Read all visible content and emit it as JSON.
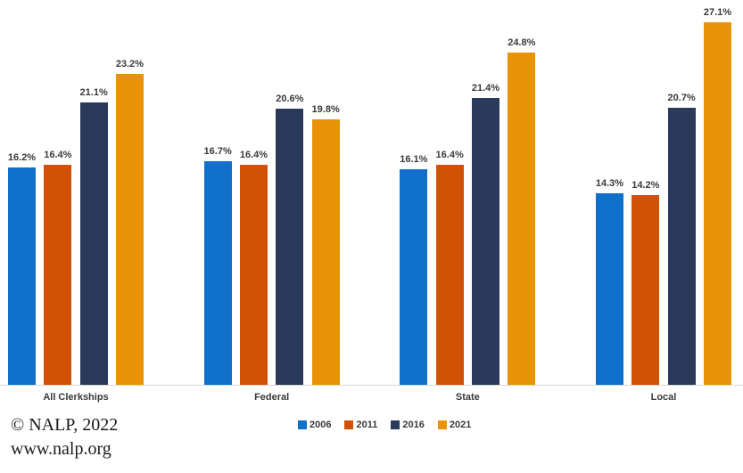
{
  "chart_data": {
    "type": "bar",
    "title": "",
    "categories": [
      "All Clerkships",
      "Federal",
      "State",
      "Local"
    ],
    "series": [
      {
        "name": "2006",
        "color": "#1070CA",
        "values": [
          16.2,
          16.7,
          16.1,
          14.3
        ]
      },
      {
        "name": "2011",
        "color": "#D15206",
        "values": [
          16.4,
          16.4,
          16.4,
          14.2
        ]
      },
      {
        "name": "2016",
        "color": "#2B3A5A",
        "values": [
          21.1,
          20.6,
          21.4,
          20.7
        ]
      },
      {
        "name": "2021",
        "color": "#E89309",
        "values": [
          23.2,
          19.8,
          24.8,
          27.1
        ]
      }
    ],
    "value_suffix": "%",
    "data_labels": true,
    "ylim": [
      0,
      28.8
    ],
    "grid": false,
    "legend_position": "bottom",
    "axis_line_color": "#D9D9D9",
    "label_color": "#3A3A3A"
  },
  "footer": {
    "line1": "© NALP, 2022",
    "line2": "www.nalp.org"
  }
}
